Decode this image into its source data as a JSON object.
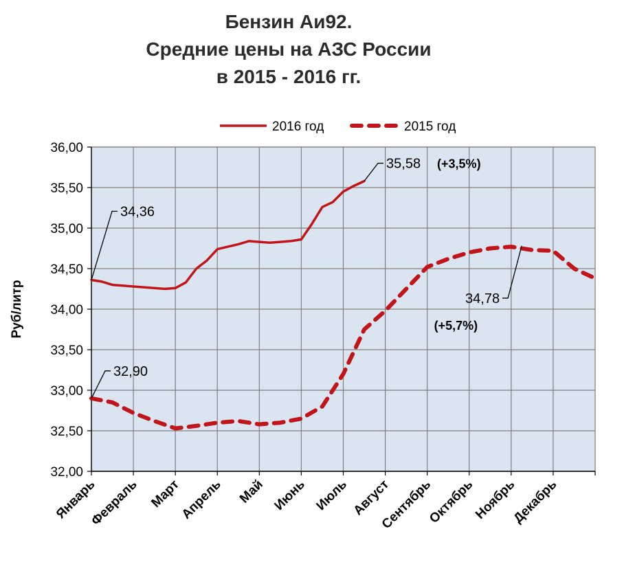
{
  "chart_data": {
    "type": "line",
    "title_lines": [
      "Бензин Аи92.",
      "Средние цены на АЗС России",
      "в 2015 - 2016 гг."
    ],
    "ylabel": "Руб/литр",
    "xlabel": "",
    "categories": [
      "Январь",
      "Февраль",
      "Март",
      "Апрель",
      "Май",
      "Июнь",
      "Июль",
      "Август",
      "Сентябрь",
      "Октябрь",
      "Ноябрь",
      "Декабрь"
    ],
    "ylim": [
      32.0,
      36.0
    ],
    "y_ticks": [
      "32,00",
      "32,50",
      "33,00",
      "33,50",
      "34,00",
      "34,50",
      "35,00",
      "35,50",
      "36,00"
    ],
    "grid": true,
    "legend_position": "top",
    "colors": {
      "series": "#c0161b",
      "plot_bg": "#dbe5f1",
      "grid": "#7f7f7f"
    },
    "series": [
      {
        "name": "2016 год",
        "style": "solid",
        "x": [
          0,
          0.25,
          0.5,
          0.75,
          1.0,
          1.25,
          1.5,
          1.75,
          2.0,
          2.25,
          2.5,
          2.75,
          3.0,
          3.25,
          3.5,
          3.75,
          4.0,
          4.25,
          4.5,
          4.75,
          5.0,
          5.25,
          5.5,
          5.75,
          6.0,
          6.25,
          6.5
        ],
        "values": [
          34.36,
          34.34,
          34.3,
          34.29,
          34.28,
          34.27,
          34.26,
          34.25,
          34.26,
          34.33,
          34.5,
          34.6,
          34.74,
          34.77,
          34.8,
          34.84,
          34.83,
          34.82,
          34.83,
          34.84,
          34.86,
          35.05,
          35.26,
          35.32,
          35.45,
          35.52,
          35.58
        ]
      },
      {
        "name": "2015 год",
        "style": "dashed",
        "x": [
          0,
          0.5,
          1.0,
          1.5,
          2.0,
          2.5,
          3.0,
          3.5,
          4.0,
          4.5,
          5.0,
          5.5,
          6.0,
          6.5,
          7.0,
          7.5,
          8.0,
          8.5,
          9.0,
          9.5,
          10.0,
          10.5,
          11.0,
          11.5,
          12.0
        ],
        "values": [
          32.9,
          32.85,
          32.72,
          32.62,
          32.53,
          32.56,
          32.6,
          32.62,
          32.58,
          32.6,
          32.65,
          32.8,
          33.2,
          33.75,
          33.98,
          34.25,
          34.52,
          34.62,
          34.7,
          34.75,
          34.77,
          34.73,
          34.72,
          34.5,
          34.38
        ]
      }
    ],
    "annotations": [
      {
        "text": "34,36",
        "series": "2016 год",
        "x": 0,
        "y": 34.36
      },
      {
        "text": "35,58",
        "extra": "(+3,5%)",
        "series": "2016 год",
        "x": 6.5,
        "y": 35.58
      },
      {
        "text": "32,90",
        "series": "2015 год",
        "x": 0,
        "y": 32.9
      },
      {
        "text": "34,78",
        "extra": "(+5,7%)",
        "series": "2015 год",
        "x": 10.25,
        "y": 34.78
      }
    ]
  }
}
